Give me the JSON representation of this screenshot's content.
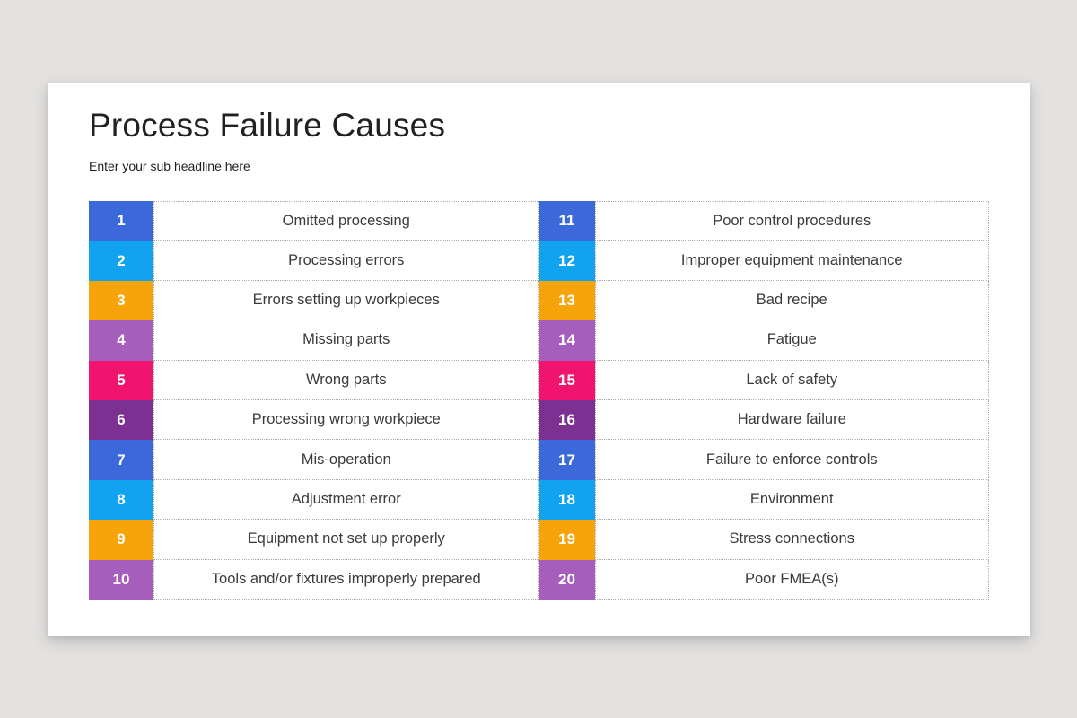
{
  "page": {
    "background_color": "#e3e2e1",
    "card_background_color": "#ffffff"
  },
  "header": {
    "title": "Process Failure Causes",
    "subtitle": "Enter your sub headline here"
  },
  "palette": {
    "blue": "#3b69d9",
    "cyan": "#12a3f0",
    "orange": "#f7a40a",
    "purple": "#a55ebc",
    "pink": "#f0146e",
    "dark_purple": "#7c3192"
  },
  "table": {
    "columns": [
      {
        "items": [
          {
            "num": "1",
            "label": "Omitted processing",
            "color": "#3b69d9"
          },
          {
            "num": "2",
            "label": "Processing errors",
            "color": "#12a3f0"
          },
          {
            "num": "3",
            "label": "Errors setting up workpieces",
            "color": "#f7a40a"
          },
          {
            "num": "4",
            "label": "Missing parts",
            "color": "#a55ebc"
          },
          {
            "num": "5",
            "label": "Wrong parts",
            "color": "#f0146e"
          },
          {
            "num": "6",
            "label": "Processing wrong workpiece",
            "color": "#7c3192"
          },
          {
            "num": "7",
            "label": "Mis-operation",
            "color": "#3b69d9"
          },
          {
            "num": "8",
            "label": "Adjustment error",
            "color": "#12a3f0"
          },
          {
            "num": "9",
            "label": "Equipment not set up properly",
            "color": "#f7a40a"
          },
          {
            "num": "10",
            "label": "Tools and/or fixtures improperly prepared",
            "color": "#a55ebc"
          }
        ]
      },
      {
        "items": [
          {
            "num": "11",
            "label": "Poor control procedures",
            "color": "#3b69d9"
          },
          {
            "num": "12",
            "label": "Improper equipment maintenance",
            "color": "#12a3f0"
          },
          {
            "num": "13",
            "label": "Bad recipe",
            "color": "#f7a40a"
          },
          {
            "num": "14",
            "label": "Fatigue",
            "color": "#a55ebc"
          },
          {
            "num": "15",
            "label": "Lack of safety",
            "color": "#f0146e"
          },
          {
            "num": "16",
            "label": "Hardware failure",
            "color": "#7c3192"
          },
          {
            "num": "17",
            "label": "Failure to enforce controls",
            "color": "#3b69d9"
          },
          {
            "num": "18",
            "label": "Environment",
            "color": "#12a3f0"
          },
          {
            "num": "19",
            "label": "Stress connections",
            "color": "#f7a40a"
          },
          {
            "num": "20",
            "label": "Poor FMEA(s)",
            "color": "#a55ebc"
          }
        ]
      }
    ]
  }
}
